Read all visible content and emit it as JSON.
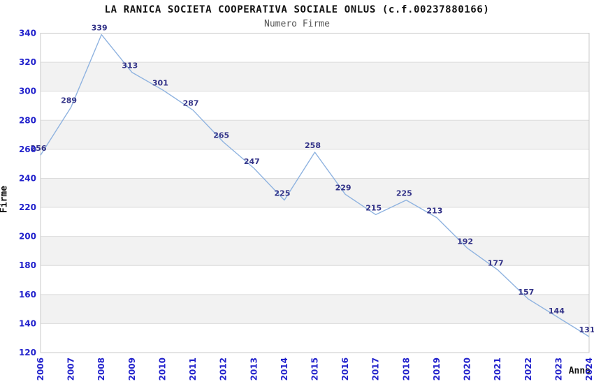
{
  "chart_data": {
    "type": "line",
    "title": "LA RANICA SOCIETA COOPERATIVA SOCIALE ONLUS (c.f.00237880166)",
    "subtitle": "Numero Firme",
    "xlabel": "Anno",
    "ylabel": "Firme",
    "categories": [
      "2006",
      "2007",
      "2008",
      "2009",
      "2010",
      "2011",
      "2012",
      "2013",
      "2014",
      "2015",
      "2016",
      "2017",
      "2018",
      "2019",
      "2020",
      "2021",
      "2022",
      "2023",
      "2024"
    ],
    "values": [
      256,
      289,
      339,
      313,
      301,
      287,
      265,
      247,
      225,
      258,
      229,
      215,
      225,
      213,
      192,
      177,
      157,
      144,
      131
    ],
    "ylim": [
      120,
      340
    ],
    "ytick_step": 20,
    "grid": "horizontal",
    "alternating_bands": true,
    "legend_position": "none",
    "colors": {
      "line": "#8fb3e0",
      "tick_label": "#2222cc",
      "value_label": "#333388",
      "band": "#f2f2f2",
      "grid": "#dcdcdc",
      "border": "#c9c9c9",
      "title": "#111111",
      "subtitle": "#555555",
      "background": "#ffffff"
    }
  }
}
